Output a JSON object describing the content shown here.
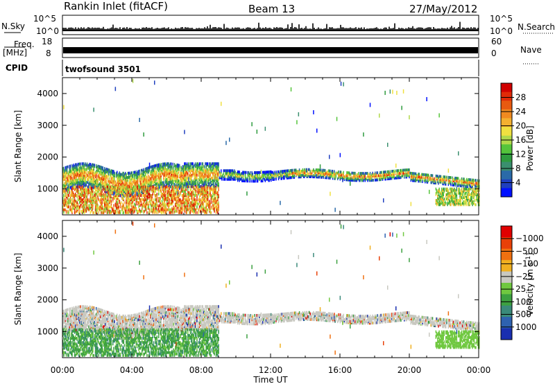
{
  "header": {
    "station": "Rankin Inlet (fitACF)",
    "beam": "Beam 13",
    "date": "27/May/2012"
  },
  "colors": {
    "scatter_high_power": "#e00000",
    "scatter_mid_power": "#2e8b57",
    "scatter_low_power": "#1f3fbf",
    "ground_scatter": "#c8c8c0"
  },
  "chart_data": [
    {
      "type": "line",
      "panel": "nsky-nsearch",
      "left_label": "N.Sky",
      "right_label": "N.Search",
      "left_ticks": [
        "10^5",
        "10^0"
      ],
      "right_ticks": [
        "10^5",
        "10^0"
      ],
      "left_axis_type": "log",
      "right_axis_type": "log",
      "legend_right": "N.Search ·······"
    },
    {
      "type": "line",
      "panel": "freq-nave",
      "left_label": "Freq.",
      "left_unit": "[MHz]",
      "right_label": "Nave",
      "left_ticks": [
        18,
        8
      ],
      "right_ticks": [
        60,
        0
      ],
      "ylim_left": [
        8,
        18
      ],
      "ylim_right": [
        0,
        60
      ],
      "legend_right": "Nave ····"
    },
    {
      "type": "table",
      "panel": "cpid",
      "label": "CPID",
      "value": "twofsound 3501"
    },
    {
      "type": "heatmap",
      "panel": "power",
      "ylabel": "Slant Range [km]",
      "xlabel": "",
      "yticks": [
        1000,
        2000,
        3000,
        4000
      ],
      "ylim": [
        180,
        4500
      ],
      "xlim": [
        0,
        24
      ],
      "colorbar": {
        "label": "Power [dB]",
        "ticks": [
          4,
          8,
          12,
          16,
          20,
          24,
          28
        ],
        "range": [
          0,
          32
        ],
        "colors": [
          "#0010ff",
          "#1f3fbf",
          "#2a6aa8",
          "#3a8f6e",
          "#2e9b3e",
          "#55c43b",
          "#b0d84a",
          "#f0e040",
          "#f4b030",
          "#f08a20",
          "#e85a10",
          "#e02a08",
          "#d00000"
        ]
      }
    },
    {
      "type": "heatmap",
      "panel": "velocity",
      "ylabel": "Slant Range [km]",
      "xlabel": "Time UT",
      "xticks": [
        "00:00",
        "04:00",
        "08:00",
        "12:00",
        "16:00",
        "20:00",
        "00:00"
      ],
      "yticks": [
        1000,
        2000,
        3000,
        4000
      ],
      "ylim": [
        180,
        4500
      ],
      "xlim": [
        0,
        24
      ],
      "colorbar": {
        "label": "Velocity [m s",
        "label_sup": "-1",
        "ticks": [
          "1000",
          "500",
          "100",
          "25",
          "−25",
          "−100",
          "−500",
          "−1000"
        ],
        "colors": [
          "#1a2fb0",
          "#2e62b0",
          "#3a8a7a",
          "#3ca040",
          "#70c840",
          "#c8c8c0",
          "#f0b020",
          "#f07010",
          "#e84008",
          "#e00000"
        ]
      }
    }
  ]
}
